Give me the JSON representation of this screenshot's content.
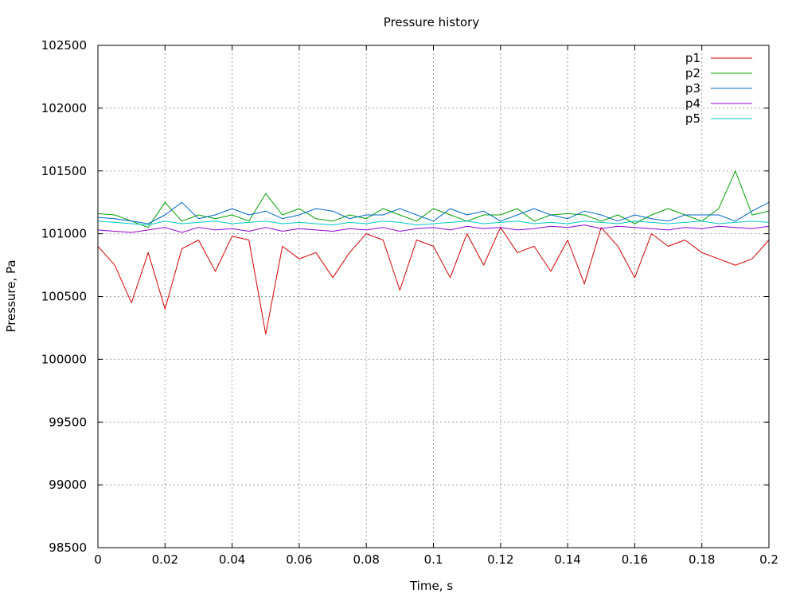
{
  "chart_data": {
    "type": "line",
    "title": "Pressure history",
    "xlabel": "Time, s",
    "ylabel": "Pressure, Pa",
    "xlim": [
      0,
      0.2
    ],
    "ylim": [
      98500,
      102500
    ],
    "x_ticks": [
      0,
      0.02,
      0.04,
      0.06,
      0.08,
      0.1,
      0.12,
      0.14,
      0.16,
      0.18,
      0.2
    ],
    "x_tick_labels": [
      "0",
      "0.02",
      "0.04",
      "0.06",
      "0.08",
      "0.1",
      "0.12",
      "0.14",
      "0.16",
      "0.18",
      "0.2"
    ],
    "y_ticks": [
      98500,
      99000,
      99500,
      100000,
      100500,
      101000,
      101500,
      102000,
      102500
    ],
    "y_tick_labels": [
      "98500",
      "99000",
      "99500",
      "100000",
      "100500",
      "101000",
      "101500",
      "102000",
      "102500"
    ],
    "grid": true,
    "legend_position": "top-right",
    "x": [
      0,
      0.005,
      0.01,
      0.015,
      0.02,
      0.025,
      0.03,
      0.035,
      0.04,
      0.045,
      0.05,
      0.055,
      0.06,
      0.065,
      0.07,
      0.075,
      0.08,
      0.085,
      0.09,
      0.095,
      0.1,
      0.105,
      0.11,
      0.115,
      0.12,
      0.125,
      0.13,
      0.135,
      0.14,
      0.145,
      0.15,
      0.155,
      0.16,
      0.165,
      0.17,
      0.175,
      0.18,
      0.185,
      0.19,
      0.195,
      0.2
    ],
    "series": [
      {
        "name": "p1",
        "color": "#d40000",
        "values": [
          100900,
          100750,
          100450,
          100850,
          100400,
          100880,
          100950,
          100700,
          100980,
          100950,
          100200,
          100900,
          100800,
          100850,
          100650,
          100850,
          101000,
          100950,
          100550,
          100950,
          100900,
          100650,
          101000,
          100750,
          101050,
          100850,
          100900,
          100700,
          100950,
          100600,
          101050,
          100900,
          100650,
          101000,
          100900,
          100950,
          100850,
          100800,
          100750,
          100800,
          100950
        ]
      },
      {
        "name": "p2",
        "color": "#00a000",
        "values": [
          101160,
          101150,
          101100,
          101050,
          101250,
          101100,
          101150,
          101120,
          101150,
          101100,
          101320,
          101150,
          101200,
          101120,
          101100,
          101150,
          101120,
          101200,
          101150,
          101100,
          101200,
          101150,
          101100,
          101150,
          101150,
          101200,
          101100,
          101150,
          101160,
          101150,
          101100,
          101150,
          101080,
          101150,
          101200,
          101150,
          101100,
          101200,
          101500,
          101150,
          101180
        ]
      },
      {
        "name": "p3",
        "color": "#0066cc",
        "values": [
          101130,
          101120,
          101100,
          101080,
          101150,
          101250,
          101120,
          101150,
          101200,
          101150,
          101180,
          101120,
          101150,
          101200,
          101180,
          101120,
          101150,
          101150,
          101200,
          101150,
          101100,
          101200,
          101150,
          101180,
          101100,
          101150,
          101200,
          101150,
          101120,
          101180,
          101150,
          101100,
          101150,
          101120,
          101100,
          101150,
          101150,
          101150,
          101100,
          101180,
          101250
        ]
      },
      {
        "name": "p4",
        "color": "#9400d3",
        "values": [
          101030,
          101020,
          101010,
          101030,
          101050,
          101010,
          101050,
          101030,
          101040,
          101020,
          101050,
          101020,
          101040,
          101030,
          101020,
          101040,
          101030,
          101050,
          101020,
          101040,
          101050,
          101030,
          101060,
          101040,
          101050,
          101030,
          101040,
          101060,
          101050,
          101070,
          101040,
          101060,
          101050,
          101040,
          101030,
          101050,
          101040,
          101060,
          101050,
          101040,
          101060
        ]
      },
      {
        "name": "p5",
        "color": "#00c8c8",
        "values": [
          101100,
          101090,
          101080,
          101070,
          101100,
          101080,
          101090,
          101100,
          101080,
          101090,
          101100,
          101080,
          101090,
          101080,
          101070,
          101090,
          101080,
          101100,
          101090,
          101070,
          101080,
          101090,
          101100,
          101080,
          101090,
          101100,
          101080,
          101090,
          101080,
          101100,
          101090,
          101080,
          101100,
          101090,
          101080,
          101090,
          101100,
          101080,
          101090,
          101100,
          101090
        ]
      }
    ]
  }
}
